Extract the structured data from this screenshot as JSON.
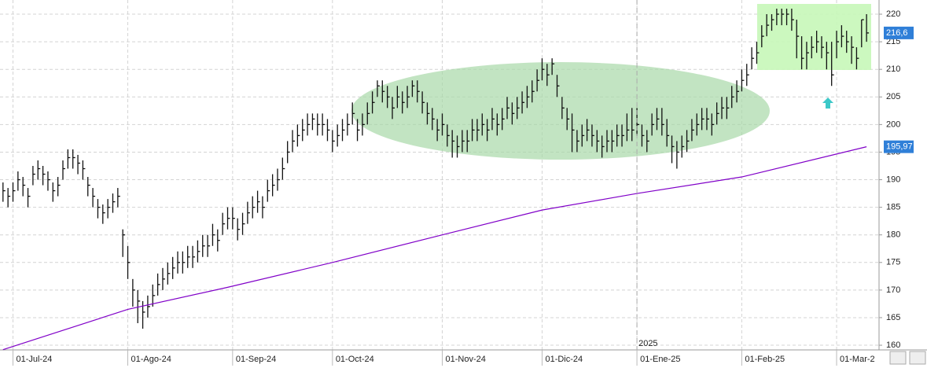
{
  "chart_data": {
    "type": "ohlc",
    "xlim": [
      -0.6,
      175.5
    ],
    "ylim": [
      159.15,
      222.57
    ],
    "yticks": [
      160,
      165,
      170,
      175,
      180,
      185,
      190,
      195,
      200,
      205,
      210,
      215,
      220
    ],
    "xticks": [
      {
        "value": 2,
        "label": "01-Jul-24"
      },
      {
        "value": 25,
        "label": "01-Ago-24"
      },
      {
        "value": 46,
        "label": "01-Sep-24"
      },
      {
        "value": 66,
        "label": "01-Oct-24"
      },
      {
        "value": 88,
        "label": "01-Nov-24"
      },
      {
        "value": 108,
        "label": "01-Dic-24"
      },
      {
        "value": 127,
        "label": "01-Ene-25"
      },
      {
        "value": 148,
        "label": "01-Feb-25"
      },
      {
        "value": 167,
        "label": "01-Mar-2"
      }
    ],
    "year_marker": {
      "value": 127,
      "label": "2025"
    },
    "grid": true,
    "bar_color": "#111111",
    "close": [
      188,
      187,
      188,
      190,
      189,
      187,
      191,
      192,
      191,
      190,
      188,
      189,
      192,
      194,
      194,
      193,
      192,
      189,
      187,
      185,
      184,
      185,
      186,
      187,
      180,
      175,
      170,
      168,
      166,
      167,
      169,
      171,
      172,
      173,
      174,
      175,
      175,
      176,
      176,
      177,
      178,
      178,
      180,
      179,
      182,
      183,
      183,
      181,
      182,
      184,
      185,
      186,
      185,
      188,
      189,
      190,
      192,
      195,
      197,
      198,
      199,
      200,
      201,
      200,
      200,
      199,
      197,
      198,
      199,
      200,
      202,
      199,
      200,
      202,
      204,
      207,
      206,
      205,
      203,
      205,
      204,
      205,
      207,
      206,
      204,
      202,
      201,
      199,
      200,
      198,
      197,
      196,
      197,
      197,
      199,
      199,
      200,
      199,
      201,
      200,
      201,
      203,
      202,
      203,
      204,
      205,
      206,
      208,
      210,
      209,
      211,
      207,
      203,
      201,
      199,
      197,
      198,
      199,
      198,
      197,
      196,
      197,
      197,
      198,
      198,
      199,
      199,
      200,
      198,
      197,
      200,
      201,
      200,
      198,
      196,
      195,
      196,
      197,
      199,
      200,
      201,
      201,
      200,
      202,
      203,
      203,
      205,
      206,
      208,
      209,
      212,
      213,
      216,
      218,
      219,
      220,
      220,
      220,
      219,
      216,
      212,
      213,
      214,
      215,
      214,
      213,
      209,
      215,
      216,
      215,
      214,
      212,
      219,
      216.6
    ],
    "high": [
      189.5,
      188.5,
      189.5,
      191.5,
      190.5,
      188.5,
      192.5,
      193.5,
      192.5,
      191.5,
      189.5,
      190.5,
      193.5,
      195.5,
      195.5,
      194.5,
      193.5,
      190.5,
      188.5,
      186.5,
      185.5,
      186.5,
      187.5,
      188.5,
      181,
      178,
      172,
      170,
      168,
      169,
      171,
      173,
      174,
      175,
      176,
      177,
      177,
      178,
      178,
      179,
      180,
      180,
      182,
      181,
      184,
      185,
      185,
      183,
      184,
      186,
      187,
      188,
      187,
      190,
      191,
      192,
      194,
      197,
      199,
      200,
      201,
      202,
      202,
      202,
      202,
      201,
      199,
      200,
      201,
      202,
      204,
      201,
      202,
      204,
      206,
      208,
      208,
      207,
      205,
      207,
      206,
      207,
      208,
      208,
      206,
      204,
      203,
      201,
      202,
      200,
      199,
      198,
      199,
      199,
      201,
      201,
      202,
      201,
      203,
      202,
      203,
      205,
      204,
      205,
      206,
      207,
      208,
      210,
      212,
      211,
      212,
      209,
      205,
      203,
      202,
      199,
      200,
      201,
      200,
      199,
      198,
      199,
      199,
      200,
      200,
      202,
      203,
      203,
      200,
      199,
      202,
      203,
      203,
      201,
      198,
      197,
      198,
      199,
      201,
      202,
      203,
      203,
      202,
      204,
      205,
      205,
      207,
      208,
      210,
      211,
      214,
      215,
      218,
      220,
      220,
      221,
      221,
      221,
      221,
      219,
      216,
      215,
      216,
      217,
      216,
      215,
      215,
      217,
      218,
      217,
      216,
      214,
      219,
      220
    ],
    "low": [
      186,
      185,
      186,
      188,
      187,
      185,
      189,
      190,
      189,
      188,
      186,
      187,
      190,
      192,
      192,
      191,
      190,
      187,
      185,
      183,
      182,
      183,
      184,
      185,
      176,
      172,
      167,
      164,
      163,
      165,
      167,
      169,
      170,
      171,
      172,
      173,
      173,
      174,
      174,
      175,
      176,
      176,
      178,
      177,
      180,
      181,
      181,
      179,
      180,
      182,
      183,
      184,
      183,
      186,
      187,
      188,
      190,
      193,
      195,
      196,
      197,
      198,
      199,
      198,
      198,
      197,
      195,
      196,
      197,
      198,
      200,
      197,
      198,
      200,
      202,
      205,
      204,
      203,
      201,
      203,
      202,
      203,
      205,
      204,
      202,
      200,
      199,
      197,
      198,
      196,
      194,
      194,
      195,
      195,
      197,
      197,
      198,
      197,
      199,
      198,
      199,
      201,
      200,
      201,
      202,
      203,
      204,
      206,
      208,
      207,
      209,
      205,
      201,
      199,
      195,
      195,
      196,
      197,
      196,
      195,
      194,
      195,
      195,
      196,
      196,
      197,
      197,
      198,
      196,
      195,
      198,
      199,
      198,
      196,
      193,
      192,
      194,
      195,
      197,
      198,
      199,
      199,
      198,
      200,
      201,
      201,
      203,
      204,
      206,
      207,
      210,
      211,
      214,
      216,
      217,
      218,
      218,
      218,
      217,
      212,
      210,
      210,
      212,
      213,
      212,
      210,
      207,
      212,
      214,
      213,
      211,
      210,
      214,
      215
    ],
    "ma": {
      "color": "#8000c8",
      "x": [
        0,
        25,
        45,
        66,
        88,
        108,
        127,
        148,
        173
      ],
      "values": [
        159.2,
        166.5,
        170.5,
        175,
        180,
        184.5,
        187.5,
        190.5,
        195.97
      ]
    },
    "price_labels": [
      {
        "value": 216.6,
        "label": "216,6"
      },
      {
        "value": 195.97,
        "label": "195,97"
      }
    ]
  }
}
